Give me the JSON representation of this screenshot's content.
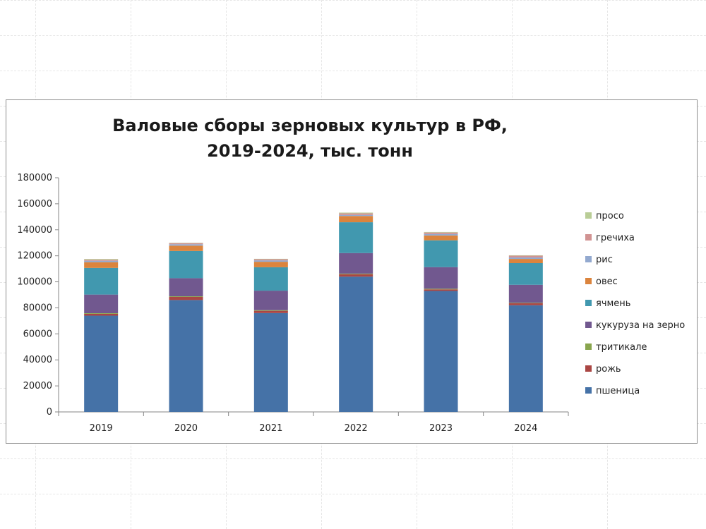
{
  "chart_data": {
    "type": "bar",
    "stacked": true,
    "title": "Валовые сборы зерновых культур в РФ, 2019-2024, тыс. тонн",
    "xlabel": "",
    "ylabel": "",
    "categories": [
      "2019",
      "2020",
      "2021",
      "2022",
      "2023",
      "2024"
    ],
    "ylim": [
      0,
      180000
    ],
    "yticks": [
      0,
      20000,
      40000,
      60000,
      80000,
      100000,
      120000,
      140000,
      160000,
      180000
    ],
    "legend_position": "right",
    "grid": false,
    "series": [
      {
        "name": "пшеница",
        "color": "#4572A7",
        "values": [
          74000,
          86000,
          76000,
          104000,
          93000,
          82000
        ]
      },
      {
        "name": "рожь",
        "color": "#AA4643",
        "values": [
          1400,
          2400,
          1700,
          1800,
          1200,
          1500
        ]
      },
      {
        "name": "тритикале",
        "color": "#89A54E",
        "values": [
          500,
          500,
          500,
          500,
          500,
          400
        ]
      },
      {
        "name": "кукуруза на зерно",
        "color": "#71588F",
        "values": [
          14300,
          13900,
          15000,
          15800,
          16600,
          13800
        ]
      },
      {
        "name": "ячмень",
        "color": "#4198AF",
        "values": [
          20500,
          20900,
          18000,
          23700,
          20600,
          16700
        ]
      },
      {
        "name": "овес",
        "color": "#DB843D",
        "values": [
          4400,
          4100,
          4200,
          4800,
          3700,
          3200
        ]
      },
      {
        "name": "рис",
        "color": "#93A9CF",
        "values": [
          1100,
          1100,
          1100,
          800,
          1100,
          1100
        ]
      },
      {
        "name": "гречиха",
        "color": "#D19392",
        "values": [
          800,
          900,
          900,
          1200,
          1200,
          1400
        ]
      },
      {
        "name": "просо",
        "color": "#B9CD96",
        "values": [
          600,
          200,
          300,
          600,
          400,
          300
        ]
      }
    ]
  }
}
